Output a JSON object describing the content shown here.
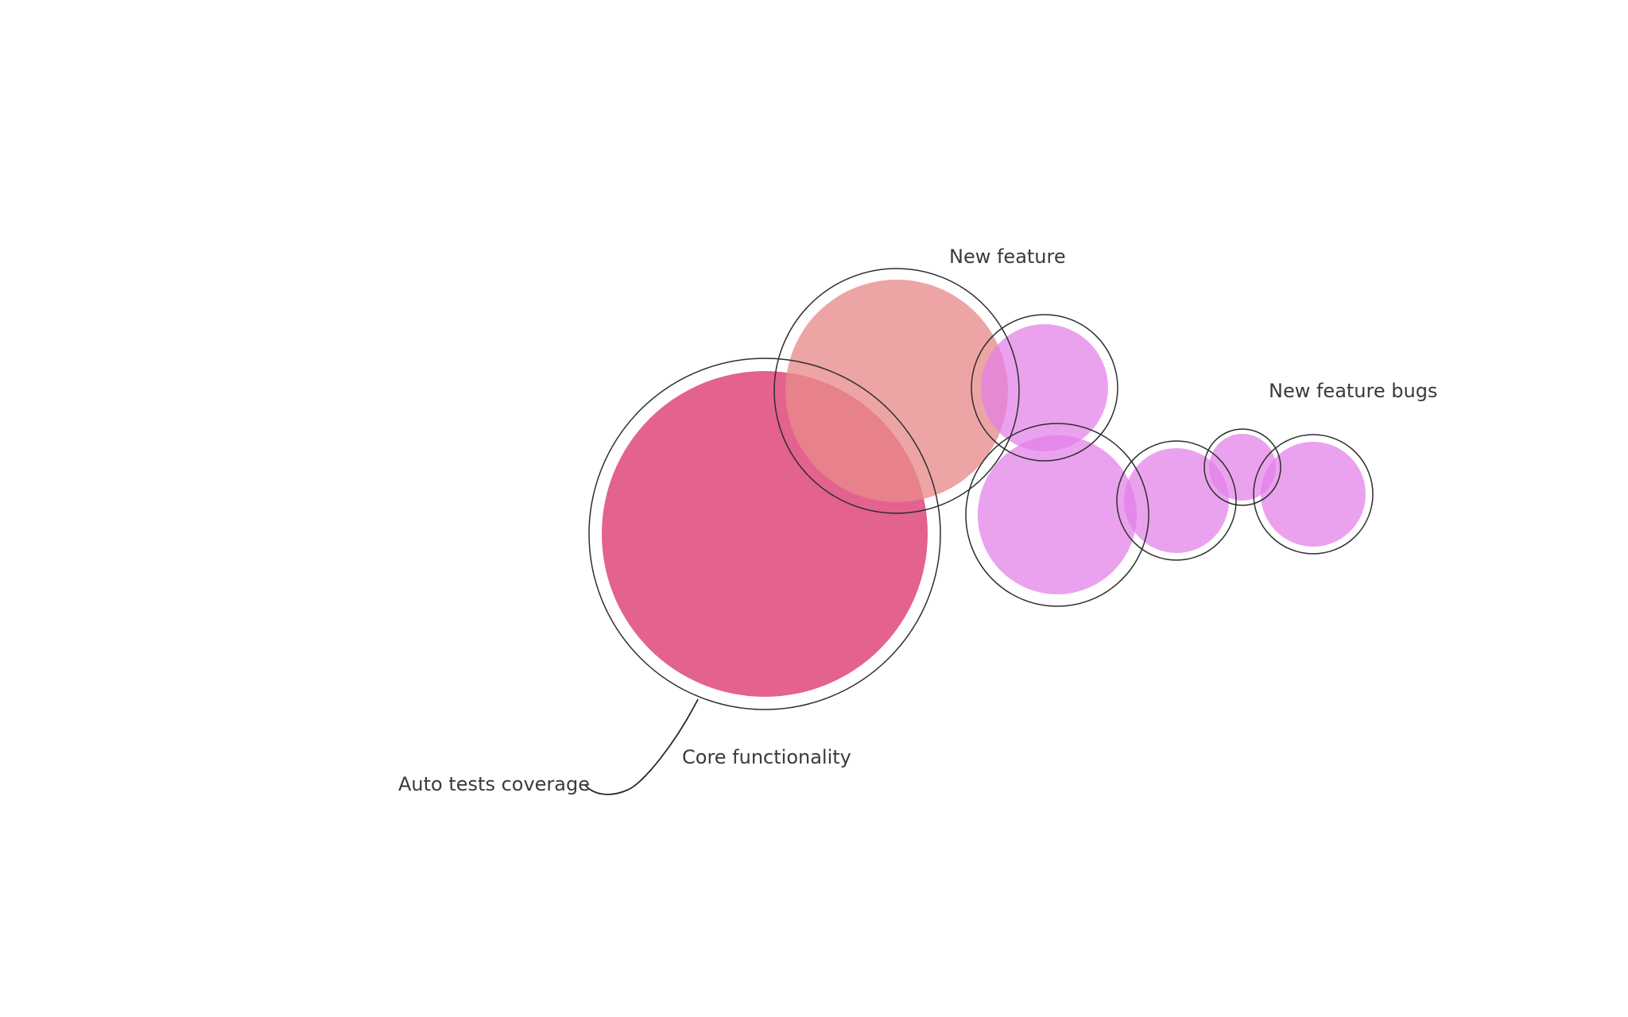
{
  "labels": {
    "new_feature": "New feature",
    "new_feature_bugs": "New feature bugs",
    "core_functionality": "Core functionality",
    "auto_tests_coverage": "Auto tests coverage"
  },
  "colors": {
    "core_functionality": "#de4478",
    "new_feature": "#e88a8c",
    "bugs": "#e27ee8",
    "outline": "#2e2e2e",
    "background": "#ffffff"
  }
}
